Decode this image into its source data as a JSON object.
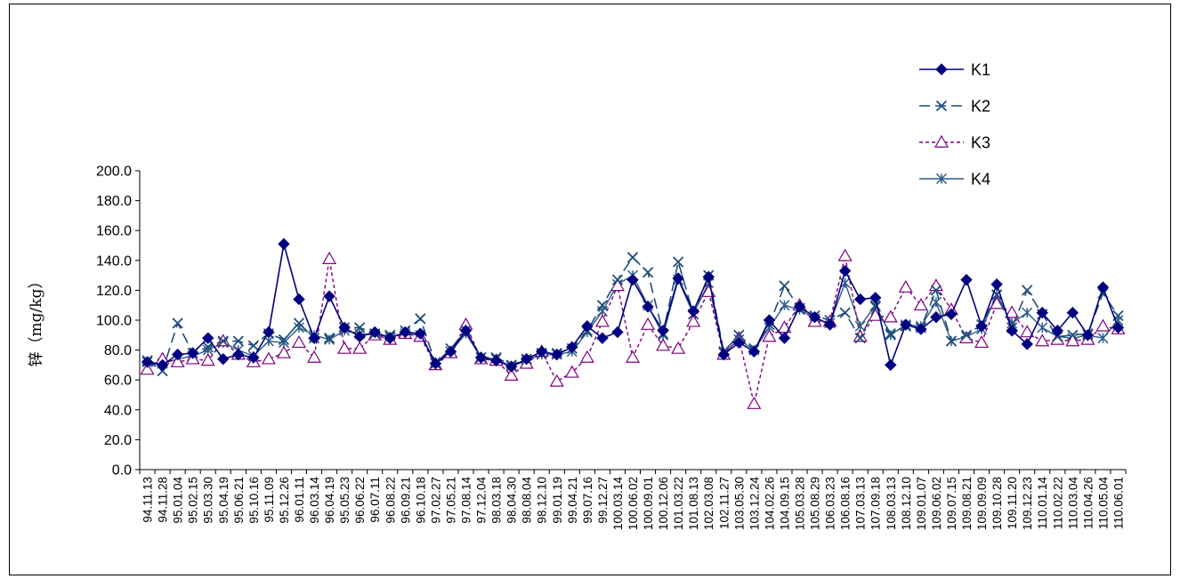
{
  "chart_data": {
    "type": "line",
    "ylabel": "锌（mg/kg）",
    "ylim": [
      0,
      200
    ],
    "y_ticks": [
      "0.0",
      "20.0",
      "40.0",
      "60.0",
      "80.0",
      "100.0",
      "120.0",
      "140.0",
      "160.0",
      "180.0",
      "200.0"
    ],
    "x_tick_labels": [
      "94.11.13",
      "94.11.28",
      "95.01.04",
      "95.02.15",
      "95.03.30",
      "95.04.19",
      "95.06.21",
      "95.10.16",
      "95.11.09",
      "95.12.26",
      "96.01.11",
      "96.03.14",
      "96.04.19",
      "95.05.23",
      "96.06.22",
      "96.07.11",
      "96.08.22",
      "96.09.21",
      "96.10.18",
      "97.02.27",
      "97.05.21",
      "97.08.14",
      "97.12.04",
      "98.03.18",
      "98.04.30",
      "98.08.04",
      "98.12.10",
      "99.01.19",
      "99.04.21",
      "99.07.16",
      "99.12.27",
      "100.03.14",
      "100.06.02",
      "100.09.01",
      "100.12.06",
      "101.03.22",
      "101.08.13",
      "102.03.08",
      "102.11.27",
      "103.05.30",
      "103.12.24",
      "104.02.26",
      "104.09.15",
      "105.03.28",
      "105.08.29",
      "106.03.23",
      "106.08.16",
      "107.03.13",
      "107.09.18",
      "108.03.13",
      "108.12.10",
      "109.01.07",
      "109.06.02",
      "109.07.15",
      "109.08.21",
      "109.09.09",
      "109.10.28",
      "109.11.20",
      "109.12.23",
      "110.01.14",
      "110.02.22",
      "110.03.04",
      "110.04.26",
      "110.05.04",
      "110.06.01"
    ],
    "series": [
      {
        "name": "K1",
        "color": "#000080",
        "values": [
          72,
          70,
          77,
          78,
          88,
          74,
          77,
          75,
          92,
          151,
          114,
          88,
          116,
          95,
          89,
          92,
          88,
          92,
          91,
          71,
          79,
          93,
          75,
          73,
          69,
          74,
          79,
          77,
          82,
          96,
          88,
          92,
          127,
          109,
          93,
          128,
          106,
          129,
          77,
          85,
          79,
          100,
          88,
          109,
          102,
          97,
          133,
          114,
          115,
          70,
          97,
          94,
          102,
          104,
          127,
          96,
          124,
          93,
          84,
          105,
          93,
          105,
          90,
          122,
          95
        ]
      },
      {
        "name": "K2",
        "color": "#1f4e79",
        "values": [
          73,
          66,
          98,
          78,
          82,
          86,
          86,
          83,
          91,
          87,
          98,
          88,
          88,
          95,
          95,
          91,
          90,
          93,
          101,
          71,
          81,
          93,
          75,
          75,
          70,
          74,
          78,
          78,
          81,
          93,
          110,
          127,
          142,
          132,
          91,
          139,
          104,
          130,
          79,
          90,
          81,
          97,
          123,
          108,
          103,
          100,
          105,
          88,
          109,
          91,
          96,
          95,
          120,
          86,
          90,
          97,
          117,
          95,
          120,
          104,
          89,
          90,
          91,
          118,
          103
        ]
      },
      {
        "name": "K3",
        "color": "#800080",
        "values": [
          67,
          74,
          72,
          74,
          73,
          86,
          77,
          72,
          74,
          78,
          85,
          75,
          141,
          81,
          81,
          90,
          87,
          91,
          89,
          70,
          78,
          97,
          74,
          73,
          63,
          71,
          79,
          59,
          65,
          75,
          99,
          123,
          75,
          97,
          83,
          81,
          99,
          119,
          77,
          88,
          44,
          89,
          95,
          110,
          99,
          99,
          143,
          89,
          103,
          102,
          122,
          110,
          123,
          107,
          88,
          85,
          111,
          105,
          92,
          86,
          87,
          86,
          87,
          96,
          94
        ]
      },
      {
        "name": "K4",
        "color": "#2e5b8c",
        "values": [
          72,
          71,
          74,
          76,
          80,
          85,
          80,
          76,
          86,
          85,
          95,
          90,
          87,
          93,
          91,
          90,
          89,
          91,
          90,
          72,
          79,
          91,
          75,
          74,
          69,
          73,
          77,
          77,
          79,
          92,
          106,
          124,
          130,
          110,
          90,
          127,
          104,
          125,
          78,
          87,
          80,
          95,
          110,
          107,
          101,
          98,
          125,
          96,
          110,
          90,
          97,
          96,
          112,
          86,
          89,
          94,
          117,
          98,
          105,
          95,
          89,
          88,
          90,
          88,
          100
        ]
      }
    ],
    "legend": "top-right",
    "grid": false
  }
}
